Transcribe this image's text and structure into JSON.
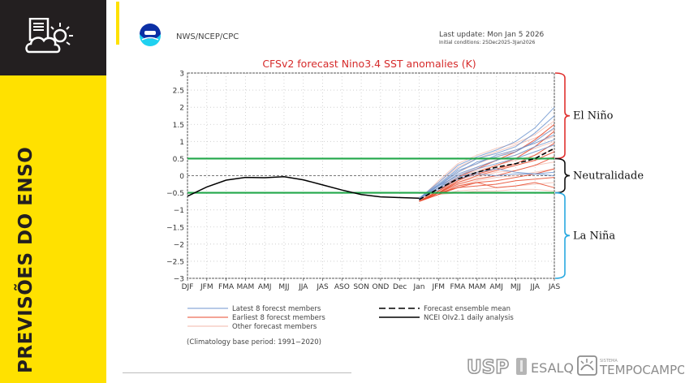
{
  "sidebar": {
    "title": "PREVISÕES DO ENSO",
    "icon": "weather-report-icon",
    "colors": {
      "yellow": "#ffe100",
      "dark": "#231f20"
    }
  },
  "header": {
    "agency": "NWS/NCEP/CPC",
    "logo": "noaa-logo",
    "last_update": "Last update: Mon Jan 5 2026",
    "initial_conditions": "Initial conditions: 25Dec2025-3Jan2026"
  },
  "footer": {
    "logos": [
      "USP",
      "ESALQ",
      "SISTEMA",
      "TEMPOCAMPO"
    ]
  },
  "regions": {
    "el_nino": {
      "label": "El Niño",
      "color": "#e0312f",
      "range": [
        0.5,
        3
      ]
    },
    "neutral": {
      "label": "Neutralidade",
      "color": "#111111",
      "range": [
        -0.5,
        0.5
      ]
    },
    "la_nina": {
      "label": "La Niña",
      "color": "#29a9e0",
      "range": [
        -3,
        -0.5
      ]
    }
  },
  "chart_data": {
    "type": "line",
    "title": "CFSv2 forecast Nino3.4 SST anomalies (K)",
    "xlabel": "",
    "ylabel": "",
    "categories": [
      "DJF",
      "JFM",
      "FMA",
      "MAM",
      "AMJ",
      "MJJ",
      "JJA",
      "JAS",
      "ASO",
      "SON",
      "OND",
      "Dec",
      "Jan",
      "JFM",
      "FMA",
      "MAM",
      "AMJ",
      "MJJ",
      "JJA",
      "JAS"
    ],
    "ylim": [
      -3,
      3
    ],
    "yticks": [
      "3",
      "2.5",
      "2",
      "1.5",
      "1",
      "0.5",
      "0",
      "-0.5",
      "-1",
      "-1.5",
      "-2",
      "-2.5",
      "-3"
    ],
    "grid": true,
    "thresholds": [
      0.5,
      -0.5
    ],
    "threshold_color": "#22a84a",
    "series": [
      {
        "name": "NCEI OIv2.1 daily analysis",
        "style": "solid",
        "color": "#000000",
        "start_index": 0,
        "values": [
          -0.6,
          -0.33,
          -0.13,
          -0.05,
          -0.06,
          -0.03,
          -0.12,
          -0.27,
          -0.42,
          -0.55,
          -0.62,
          -0.64,
          -0.66
        ]
      },
      {
        "name": "Forecast ensemble mean",
        "style": "dashed",
        "color": "#000000",
        "start_index": 12,
        "values": [
          -0.7,
          -0.38,
          -0.1,
          0.1,
          0.25,
          0.35,
          0.5,
          0.8
        ]
      },
      {
        "name": "Latest 8 forecast members",
        "style": "solid",
        "color": "#6f95cf",
        "group": "latest",
        "start_index": 12,
        "members": [
          [
            -0.66,
            -0.2,
            0.3,
            0.55,
            0.75,
            1.0,
            1.4,
            2.0
          ],
          [
            -0.66,
            -0.25,
            0.2,
            0.5,
            0.65,
            0.85,
            1.25,
            1.75
          ],
          [
            -0.66,
            -0.3,
            0.1,
            0.4,
            0.55,
            0.7,
            1.0,
            1.4
          ],
          [
            -0.66,
            -0.28,
            0.15,
            0.35,
            0.6,
            0.75,
            0.95,
            1.2
          ],
          [
            -0.66,
            -0.35,
            0.05,
            0.25,
            0.45,
            0.6,
            0.85,
            1.05
          ],
          [
            -0.66,
            -0.3,
            0.0,
            0.2,
            0.35,
            0.5,
            0.7,
            0.9
          ],
          [
            -0.66,
            -0.35,
            -0.05,
            0.1,
            0.2,
            0.1,
            0.05,
            0.1
          ],
          [
            -0.66,
            -0.4,
            -0.1,
            0.05,
            0.0,
            0.05,
            0.05,
            0.0
          ]
        ]
      },
      {
        "name": "Earliest 8 forecast members",
        "style": "solid",
        "color": "#e8492c",
        "group": "earliest",
        "start_index": 12,
        "members": [
          [
            -0.75,
            -0.45,
            -0.05,
            0.2,
            0.45,
            0.7,
            1.05,
            1.5
          ],
          [
            -0.75,
            -0.5,
            -0.15,
            0.1,
            0.3,
            0.5,
            0.85,
            1.3
          ],
          [
            -0.75,
            -0.45,
            -0.1,
            0.05,
            0.2,
            0.35,
            0.6,
            0.95
          ],
          [
            -0.75,
            -0.5,
            -0.2,
            0.0,
            0.15,
            0.3,
            0.45,
            0.7
          ],
          [
            -0.75,
            -0.5,
            -0.25,
            -0.1,
            0.0,
            0.15,
            0.3,
            0.55
          ],
          [
            -0.75,
            -0.55,
            -0.3,
            -0.2,
            -0.15,
            -0.05,
            0.05,
            0.2
          ],
          [
            -0.75,
            -0.55,
            -0.35,
            -0.3,
            -0.25,
            -0.15,
            -0.1,
            -0.05
          ],
          [
            -0.75,
            -0.5,
            -0.35,
            -0.2,
            -0.35,
            -0.3,
            -0.2,
            -0.35
          ]
        ]
      },
      {
        "name": "Other forecast members",
        "style": "solid",
        "color": "#f2b7a8",
        "group": "other",
        "start_index": 12,
        "members": [
          [
            -0.7,
            -0.15,
            0.35,
            0.6,
            0.8,
            0.95,
            1.2,
            1.6
          ],
          [
            -0.7,
            -0.2,
            0.25,
            0.5,
            0.7,
            0.9,
            1.1,
            1.35
          ],
          [
            -0.7,
            -0.3,
            0.1,
            0.35,
            0.55,
            0.75,
            0.95,
            1.15
          ],
          [
            -0.7,
            -0.35,
            0.0,
            0.25,
            0.45,
            0.6,
            0.8,
            1.0
          ],
          [
            -0.7,
            -0.4,
            -0.05,
            0.15,
            0.3,
            0.45,
            0.6,
            0.75
          ],
          [
            -0.7,
            -0.45,
            -0.15,
            0.05,
            0.2,
            0.3,
            0.45,
            0.55
          ],
          [
            -0.7,
            -0.45,
            -0.2,
            -0.05,
            0.1,
            0.15,
            0.3,
            0.4
          ],
          [
            -0.7,
            -0.5,
            -0.3,
            -0.15,
            -0.05,
            0.0,
            0.1,
            0.2
          ],
          [
            -0.7,
            -0.55,
            -0.45,
            -0.4,
            -0.35,
            -0.3,
            -0.25,
            -0.2
          ],
          [
            -0.7,
            -0.55,
            -0.5,
            -0.45,
            -0.45,
            -0.4,
            -0.4,
            -0.45
          ]
        ]
      }
    ],
    "legend": {
      "position": "bottom",
      "items": [
        {
          "label": "Latest 8 forecst members",
          "color": "#6f95cf",
          "style": "solid"
        },
        {
          "label": "Earliest 8 forecst members",
          "color": "#e8492c",
          "style": "solid"
        },
        {
          "label": "Other forecast members",
          "color": "#f2b7a8",
          "style": "solid"
        },
        {
          "label": "Forecast ensemble mean",
          "color": "#000000",
          "style": "dashed"
        },
        {
          "label": "NCEI OIv2.1 daily analysis",
          "color": "#000000",
          "style": "solid"
        }
      ],
      "note": "(Climatology base period: 1991−2020)"
    }
  }
}
